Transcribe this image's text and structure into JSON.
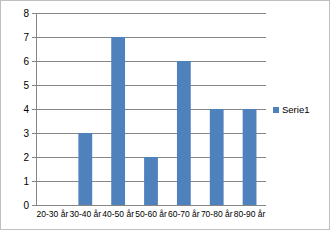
{
  "chart_data": {
    "type": "bar",
    "categories": [
      "20-30 år",
      "30-40 år",
      "40-50 år",
      "50-60 år",
      "60-70 år",
      "70-80 år",
      "80-90 år"
    ],
    "series": [
      {
        "name": "Serie1",
        "color": "#4f81bd",
        "values": [
          0,
          3,
          7,
          2,
          6,
          4,
          4
        ]
      }
    ],
    "ylim": [
      0,
      8
    ],
    "yticks": [
      0,
      1,
      2,
      3,
      4,
      5,
      6,
      7,
      8
    ],
    "grid": true,
    "legend": "right"
  }
}
